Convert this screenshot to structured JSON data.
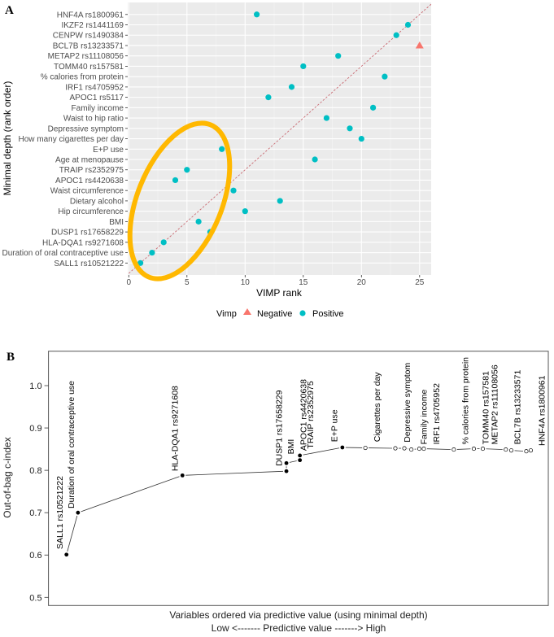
{
  "chart_data": [
    {
      "panel": "A",
      "type": "scatter",
      "xlabel": "VIMP rank",
      "ylabel": "Minimal depth (rank order)",
      "xlim": [
        0,
        26
      ],
      "xticks": [
        0,
        5,
        10,
        15,
        20,
        25
      ],
      "grid": true,
      "reference_line": "y = x (dashed)",
      "legend": {
        "title": "Vimp",
        "placement": "bottom",
        "entries": [
          {
            "label": "Negative",
            "shape": "triangle",
            "color": "#F8766D"
          },
          {
            "label": "Positive",
            "shape": "circle",
            "color": "#00BFC4"
          }
        ]
      },
      "highlight": "ellipse around lowest-ranked variables",
      "highlight_color": "#FFB800",
      "points": [
        {
          "label": "SALL1 rs10521222",
          "depth_rank": 1,
          "vimp_rank": 1,
          "vimp": "Positive"
        },
        {
          "label": "Duration of oral contraceptive use",
          "depth_rank": 2,
          "vimp_rank": 2,
          "vimp": "Positive"
        },
        {
          "label": "HLA-DQA1 rs9271608",
          "depth_rank": 3,
          "vimp_rank": 3,
          "vimp": "Positive"
        },
        {
          "label": "DUSP1 rs17658229",
          "depth_rank": 4,
          "vimp_rank": 7,
          "vimp": "Positive"
        },
        {
          "label": "BMI",
          "depth_rank": 5,
          "vimp_rank": 6,
          "vimp": "Positive"
        },
        {
          "label": "Hip circumference",
          "depth_rank": 6,
          "vimp_rank": 10,
          "vimp": "Positive"
        },
        {
          "label": "Dietary alcohol",
          "depth_rank": 7,
          "vimp_rank": 13,
          "vimp": "Positive"
        },
        {
          "label": "Waist circumference",
          "depth_rank": 8,
          "vimp_rank": 9,
          "vimp": "Positive"
        },
        {
          "label": "APOC1 rs4420638",
          "depth_rank": 9,
          "vimp_rank": 4,
          "vimp": "Positive"
        },
        {
          "label": "TRAIP rs2352975",
          "depth_rank": 10,
          "vimp_rank": 5,
          "vimp": "Positive"
        },
        {
          "label": "Age at menopause",
          "depth_rank": 11,
          "vimp_rank": 16,
          "vimp": "Positive"
        },
        {
          "label": "E+P use",
          "depth_rank": 12,
          "vimp_rank": 8,
          "vimp": "Positive"
        },
        {
          "label": "How many cigarettes per day",
          "depth_rank": 13,
          "vimp_rank": 20,
          "vimp": "Positive"
        },
        {
          "label": "Depressive symptom",
          "depth_rank": 14,
          "vimp_rank": 19,
          "vimp": "Positive"
        },
        {
          "label": "Waist to hip ratio",
          "depth_rank": 15,
          "vimp_rank": 17,
          "vimp": "Positive"
        },
        {
          "label": "Family income",
          "depth_rank": 16,
          "vimp_rank": 21,
          "vimp": "Positive"
        },
        {
          "label": "APOC1 rs5117",
          "depth_rank": 17,
          "vimp_rank": 12,
          "vimp": "Positive"
        },
        {
          "label": "IRF1 rs4705952",
          "depth_rank": 18,
          "vimp_rank": 14,
          "vimp": "Positive"
        },
        {
          "label": "% calories from protein",
          "depth_rank": 19,
          "vimp_rank": 22,
          "vimp": "Positive"
        },
        {
          "label": "TOMM40 rs157581",
          "depth_rank": 20,
          "vimp_rank": 15,
          "vimp": "Positive"
        },
        {
          "label": "METAP2 rs11108056",
          "depth_rank": 21,
          "vimp_rank": 18,
          "vimp": "Positive"
        },
        {
          "label": "BCL7B rs13233571",
          "depth_rank": 22,
          "vimp_rank": 25,
          "vimp": "Negative"
        },
        {
          "label": "CENPW rs1490384",
          "depth_rank": 23,
          "vimp_rank": 23,
          "vimp": "Positive"
        },
        {
          "label": "IKZF2 rs1441169",
          "depth_rank": 24,
          "vimp_rank": 24,
          "vimp": "Positive"
        },
        {
          "label": "HNF4A rs1800961",
          "depth_rank": 25,
          "vimp_rank": 11,
          "vimp": "Positive"
        }
      ]
    },
    {
      "panel": "B",
      "type": "line",
      "ylabel": "Out-of-bag c-index",
      "xlabel": "Variables ordered via predictive value (using minimal depth)",
      "xlabel2": "Low <------- Predictive value -------> High",
      "ylim": [
        0.47,
        1.07
      ],
      "yticks": [
        "0.5",
        "0.6",
        "0.7",
        "0.8",
        "0.9",
        "1.0"
      ],
      "xlim": [
        0,
        100
      ],
      "points": [
        {
          "x": 3.6,
          "c": 0.601,
          "filled": true
        },
        {
          "x": 5.9,
          "c": 0.7,
          "filled": true
        },
        {
          "x": 26.8,
          "c": 0.788,
          "filled": true
        },
        {
          "x": 47.6,
          "c": 0.798,
          "filled": true
        },
        {
          "x": 47.6,
          "c": 0.817,
          "filled": true
        },
        {
          "x": 50.3,
          "c": 0.824,
          "filled": true
        },
        {
          "x": 50.3,
          "c": 0.835,
          "filled": true
        },
        {
          "x": 58.8,
          "c": 0.854,
          "filled": true
        },
        {
          "x": 63.4,
          "c": 0.853,
          "filled": false
        },
        {
          "x": 69.4,
          "c": 0.852,
          "filled": false
        },
        {
          "x": 71.2,
          "c": 0.852,
          "filled": false
        },
        {
          "x": 72.6,
          "c": 0.849,
          "filled": false
        },
        {
          "x": 74.2,
          "c": 0.851,
          "filled": false
        },
        {
          "x": 75.1,
          "c": 0.851,
          "filled": false
        },
        {
          "x": 81.1,
          "c": 0.849,
          "filled": false
        },
        {
          "x": 85.1,
          "c": 0.851,
          "filled": false
        },
        {
          "x": 86.9,
          "c": 0.851,
          "filled": false
        },
        {
          "x": 91.5,
          "c": 0.849,
          "filled": false
        },
        {
          "x": 92.6,
          "c": 0.847,
          "filled": false
        },
        {
          "x": 95.6,
          "c": 0.845,
          "filled": false
        },
        {
          "x": 96.5,
          "c": 0.847,
          "filled": false
        }
      ],
      "labels": [
        {
          "text": "SALL1 rs10521222",
          "x": 2.2,
          "c": 0.614
        },
        {
          "text": "Duration of oral contraceptive use",
          "x": 4.5,
          "c": 0.71
        },
        {
          "text": "HLA-DQA1 rs9271608",
          "x": 25.3,
          "c": 0.798
        },
        {
          "text": "DUSP1 rs17658229",
          "x": 46.1,
          "c": 0.81
        },
        {
          "text": "BMI",
          "x": 48.5,
          "c": 0.838
        },
        {
          "text": "APOC1 rs4420638",
          "x": 51.0,
          "c": 0.846
        },
        {
          "text": "TRAIP rs2352975",
          "x": 52.4,
          "c": 0.851
        },
        {
          "text": "E+P use",
          "x": 57.2,
          "c": 0.867
        },
        {
          "text": "Cigarettes per day",
          "x": 65.7,
          "c": 0.867
        },
        {
          "text": "Depressive symptom",
          "x": 71.7,
          "c": 0.866
        },
        {
          "text": "Family income",
          "x": 75.1,
          "c": 0.861
        },
        {
          "text": "IRF1 rs4705952",
          "x": 77.6,
          "c": 0.861
        },
        {
          "text": "% calories from protein",
          "x": 83.4,
          "c": 0.861
        },
        {
          "text": "TOMM40 rs157581",
          "x": 87.4,
          "c": 0.861
        },
        {
          "text": "METAP2 rs11108056",
          "x": 89.2,
          "c": 0.861
        },
        {
          "text": "BCL7B rs13233571",
          "x": 93.8,
          "c": 0.861
        },
        {
          "text": "HNF4A rs1800961",
          "x": 98.7,
          "c": 0.858
        }
      ]
    }
  ]
}
